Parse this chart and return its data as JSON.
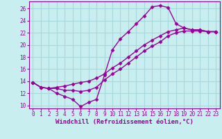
{
  "background_color": "#c8eef0",
  "grid_color": "#a8d8dc",
  "line_color": "#990099",
  "marker": "D",
  "markersize": 2.5,
  "linewidth": 1.0,
  "xlabel": "Windchill (Refroidissement éolien,°C)",
  "xlabel_fontsize": 6.5,
  "tick_fontsize": 5.5,
  "xlim": [
    -0.5,
    23.5
  ],
  "ylim": [
    9.5,
    27.2
  ],
  "xticks": [
    0,
    1,
    2,
    3,
    4,
    5,
    6,
    7,
    8,
    9,
    10,
    11,
    12,
    13,
    14,
    15,
    16,
    17,
    18,
    19,
    20,
    21,
    22,
    23
  ],
  "yticks": [
    10,
    12,
    14,
    16,
    18,
    20,
    22,
    24,
    26
  ],
  "curve1_x": [
    0,
    1,
    2,
    3,
    4,
    5,
    6,
    7,
    8,
    9,
    10,
    11,
    12,
    13,
    14,
    15,
    16,
    17,
    18,
    19,
    20,
    21,
    22,
    23
  ],
  "curve1_y": [
    13.8,
    13.0,
    12.8,
    12.0,
    11.5,
    11.0,
    9.8,
    10.5,
    11.0,
    15.0,
    19.2,
    21.0,
    22.2,
    23.5,
    24.8,
    26.3,
    26.5,
    26.2,
    23.5,
    22.8,
    22.5,
    22.5,
    22.2,
    22.2
  ],
  "curve2_x": [
    0,
    1,
    2,
    3,
    4,
    5,
    6,
    7,
    8,
    9,
    10,
    11,
    12,
    13,
    14,
    15,
    16,
    17,
    18,
    19,
    20,
    21,
    22,
    23
  ],
  "curve2_y": [
    13.8,
    13.0,
    12.8,
    12.8,
    12.5,
    12.5,
    12.3,
    12.5,
    13.0,
    14.2,
    15.2,
    16.0,
    17.0,
    18.0,
    19.0,
    19.8,
    20.5,
    21.5,
    22.0,
    22.3,
    22.3,
    22.3,
    22.2,
    22.2
  ],
  "curve3_x": [
    0,
    1,
    2,
    3,
    4,
    5,
    6,
    7,
    8,
    9,
    10,
    11,
    12,
    13,
    14,
    15,
    16,
    17,
    18,
    19,
    20,
    21,
    22,
    23
  ],
  "curve3_y": [
    13.8,
    13.0,
    12.8,
    13.0,
    13.2,
    13.5,
    13.8,
    14.0,
    14.5,
    15.2,
    16.2,
    17.0,
    18.0,
    19.0,
    20.0,
    20.8,
    21.5,
    22.2,
    22.5,
    22.8,
    22.5,
    22.5,
    22.2,
    22.2
  ]
}
